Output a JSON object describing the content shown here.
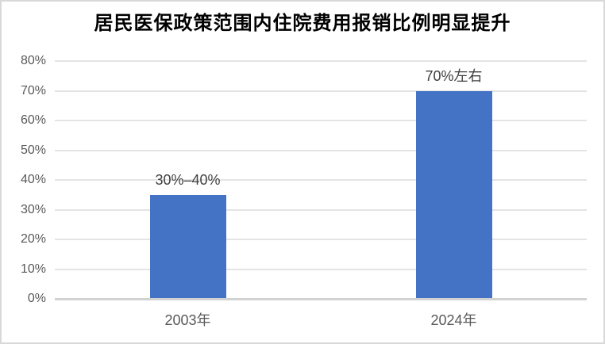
{
  "frame": {
    "background": "#ffffff",
    "border_color": "#d9d9d9"
  },
  "chart_data": {
    "type": "bar",
    "title": "居民医保政策范围内住院费用报销比例明显提升",
    "categories": [
      "2003年",
      "2024年"
    ],
    "values": [
      35,
      70
    ],
    "data_labels": [
      "30%–40%",
      "70%左右"
    ],
    "xlabel": "",
    "ylabel": "",
    "ylim": [
      0,
      80
    ],
    "yticks": [
      0,
      10,
      20,
      30,
      40,
      50,
      60,
      70,
      80
    ],
    "ytick_suffix": "%",
    "grid": true,
    "legend": false,
    "bar_color": "#4472c4",
    "colors": {
      "title": "#000000",
      "axis_labels": "#595959",
      "data_labels": "#404040",
      "gridline": "#e4e4e4",
      "axis_line": "#d2d2d2"
    }
  }
}
